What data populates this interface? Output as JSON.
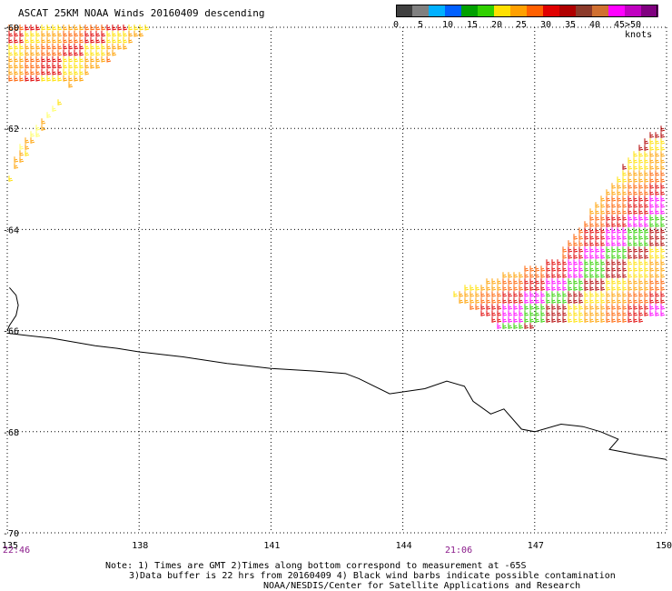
{
  "title": "ASCAT 25KM NOAA Winds 20160409 descending",
  "colorbar": {
    "colors": [
      "#404040",
      "#808080",
      "#00b0ff",
      "#0060ff",
      "#00a000",
      "#30d000",
      "#ffe000",
      "#ffa000",
      "#ff6000",
      "#e00000",
      "#b00000",
      "#8b3a2a",
      "#d07030",
      "#ff00ff",
      "#c000c0",
      "#800080"
    ],
    "labels": [
      "0",
      "5",
      "10",
      "15",
      "20",
      "25",
      "30",
      "35",
      "40",
      "45",
      ">50 knots"
    ]
  },
  "lat_labels": [
    "-60",
    "-62",
    "-64",
    "-66",
    "-68",
    "-70"
  ],
  "lon_labels": [
    "135",
    "138",
    "141",
    "144",
    "147",
    "150"
  ],
  "times": [
    "22:46",
    "21:06"
  ],
  "notes": [
    "Note: 1) Times are GMT 2)Times along bottom correspond to measurement at -65S",
    "3)Data buffer is 22 hrs from 20160409 4) Black wind barbs indicate possible contamination",
    "NOAA/NESDIS/Center for Satellite Applications and Research"
  ],
  "coastline": {
    "island": [
      [
        135.05,
        -65.15
      ],
      [
        135.2,
        -65.3
      ],
      [
        135.25,
        -65.5
      ],
      [
        135.2,
        -65.7
      ],
      [
        135.05,
        -65.9
      ],
      [
        135.0,
        -66.0
      ]
    ],
    "mainland": [
      [
        135.0,
        -66.05
      ],
      [
        135.5,
        -66.1
      ],
      [
        136.0,
        -66.15
      ],
      [
        137.0,
        -66.3
      ],
      [
        137.5,
        -66.35
      ],
      [
        138.0,
        -66.42
      ],
      [
        139.0,
        -66.52
      ],
      [
        140.0,
        -66.65
      ],
      [
        141.0,
        -66.75
      ],
      [
        142.0,
        -66.8
      ],
      [
        142.7,
        -66.85
      ],
      [
        143.0,
        -66.95
      ],
      [
        143.7,
        -67.25
      ],
      [
        144.5,
        -67.15
      ],
      [
        145.0,
        -67.0
      ],
      [
        145.4,
        -67.1
      ],
      [
        145.6,
        -67.4
      ],
      [
        146.0,
        -67.65
      ],
      [
        146.3,
        -67.55
      ],
      [
        146.7,
        -67.95
      ],
      [
        147.0,
        -68.0
      ],
      [
        147.6,
        -67.85
      ],
      [
        148.1,
        -67.9
      ],
      [
        148.5,
        -68.0
      ],
      [
        148.9,
        -68.15
      ],
      [
        148.7,
        -68.35
      ],
      [
        149.3,
        -68.45
      ],
      [
        150.0,
        -68.55
      ]
    ]
  },
  "swaths": [
    {
      "name": "upper-left-north",
      "poly": [
        [
          135.0,
          -60.0
        ],
        [
          138.3,
          -60.0
        ],
        [
          136.5,
          -61.2
        ],
        [
          135.0,
          -61.1
        ]
      ],
      "colors": [
        "#ffa000",
        "#ff6000",
        "#e00000",
        "#ffe000"
      ]
    },
    {
      "name": "upper-left-south",
      "poly": [
        [
          136.5,
          -61.1
        ],
        [
          135.0,
          -63.1
        ],
        [
          135.3,
          -62.3
        ],
        [
          136.2,
          -61.4
        ]
      ],
      "colors": [
        "#ffe000",
        "#ffff60",
        "#ffa000"
      ]
    },
    {
      "name": "east-swath",
      "poly": [
        [
          150.0,
          -62.0
        ],
        [
          150.0,
          -65.8
        ],
        [
          146.2,
          -66.0
        ],
        [
          145.0,
          -65.3
        ],
        [
          147.5,
          -64.6
        ],
        [
          149.6,
          -62.1
        ]
      ],
      "colors": [
        "#ffe000",
        "#ffa000",
        "#ff6000",
        "#e00000",
        "#ff00ff",
        "#30d000",
        "#b00000"
      ]
    }
  ]
}
